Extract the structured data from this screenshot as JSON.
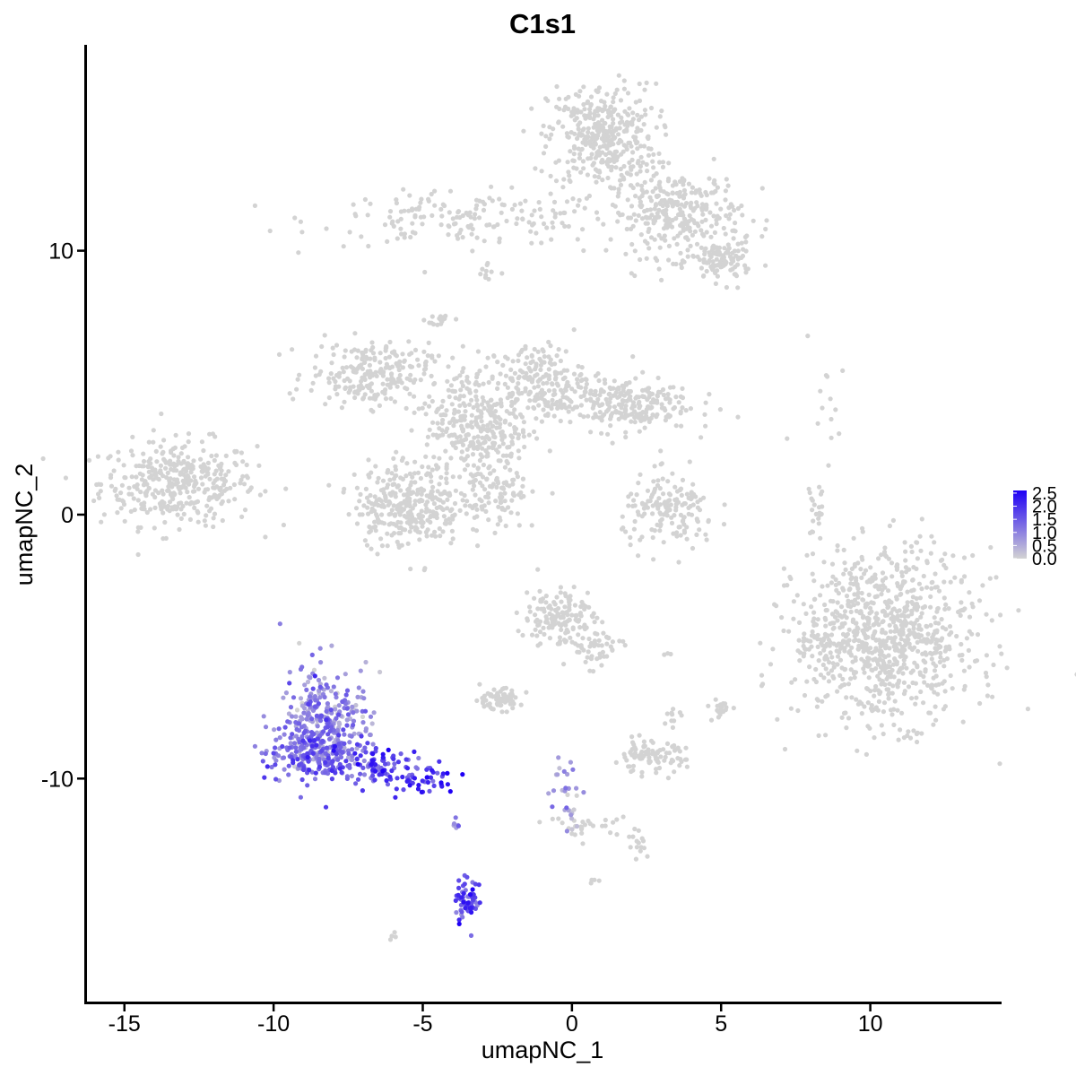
{
  "chart_data": {
    "type": "scatter",
    "title": "C1s1",
    "xlabel": "umapNC_1",
    "ylabel": "umapNC_2",
    "xlim": [
      -16.3,
      14.4
    ],
    "ylim": [
      -18.5,
      17.8
    ],
    "x_ticks": [
      -15,
      -10,
      -5,
      0,
      5,
      10
    ],
    "y_ticks": [
      -10,
      0,
      10
    ],
    "x_tick_labels": [
      "-15",
      "-10",
      "-5",
      "0",
      "5",
      "10"
    ],
    "y_tick_labels": [
      "-10",
      "0",
      "10"
    ],
    "grid": false,
    "legend_position": "right",
    "color_scale": {
      "low_color": "#d3d3d3",
      "high_color": "#1f00f5",
      "min": 0.0,
      "max": 2.6,
      "breaks": [
        0.0,
        0.5,
        1.0,
        1.5,
        2.0,
        2.5
      ],
      "labels": [
        "0.0",
        "0.5",
        "1.0",
        "1.5",
        "2.0",
        "2.5"
      ]
    },
    "clusters": [
      {
        "cx": -13.2,
        "cy": 1.2,
        "sx": 1.3,
        "sy": 0.8,
        "n": 380,
        "value": 0
      },
      {
        "cx": -3.5,
        "cy": 11.2,
        "sx": 2.5,
        "sy": 0.5,
        "n": 170,
        "value": 0
      },
      {
        "cx": 1.0,
        "cy": 14.3,
        "sx": 0.9,
        "sy": 1.0,
        "n": 380,
        "value": 0
      },
      {
        "cx": 3.5,
        "cy": 11.4,
        "sx": 1.1,
        "sy": 0.8,
        "n": 300,
        "value": 0
      },
      {
        "cx": 5.0,
        "cy": 9.6,
        "sx": 0.5,
        "sy": 0.4,
        "n": 110,
        "value": 0
      },
      {
        "cx": -2.8,
        "cy": 9.2,
        "sx": 0.2,
        "sy": 0.3,
        "n": 10,
        "value": 0
      },
      {
        "cx": -4.4,
        "cy": 7.4,
        "sx": 0.25,
        "sy": 0.15,
        "n": 16,
        "value": 0
      },
      {
        "cx": -6.8,
        "cy": 5.3,
        "sx": 1.0,
        "sy": 0.6,
        "n": 230,
        "value": 0
      },
      {
        "cx": -3.2,
        "cy": 3.4,
        "sx": 0.9,
        "sy": 1.2,
        "n": 330,
        "value": 0
      },
      {
        "cx": -1.2,
        "cy": 5.1,
        "sx": 0.8,
        "sy": 0.7,
        "n": 180,
        "value": 0
      },
      {
        "cx": 1.6,
        "cy": 4.2,
        "sx": 1.2,
        "sy": 0.5,
        "n": 260,
        "value": 0
      },
      {
        "cx": -5.5,
        "cy": 0.4,
        "sx": 0.9,
        "sy": 0.8,
        "n": 320,
        "value": 0
      },
      {
        "cx": -2.5,
        "cy": 0.7,
        "sx": 0.5,
        "sy": 0.8,
        "n": 90,
        "value": 0
      },
      {
        "cx": 3.3,
        "cy": 0.1,
        "sx": 0.8,
        "sy": 0.7,
        "n": 160,
        "value": 0
      },
      {
        "cx": 8.2,
        "cy": 0.2,
        "sx": 0.15,
        "sy": 0.6,
        "n": 22,
        "value": 0
      },
      {
        "cx": 10.5,
        "cy": -4.6,
        "sx": 1.5,
        "sy": 1.6,
        "n": 880,
        "value": 0
      },
      {
        "cx": 8.1,
        "cy": -4.7,
        "sx": 0.3,
        "sy": 0.4,
        "n": 30,
        "value": 0
      },
      {
        "cx": -0.4,
        "cy": -3.9,
        "sx": 0.6,
        "sy": 0.6,
        "n": 150,
        "value": 0
      },
      {
        "cx": 0.9,
        "cy": -5.1,
        "sx": 0.4,
        "sy": 0.4,
        "n": 40,
        "value": 0
      },
      {
        "cx": -2.5,
        "cy": -7.0,
        "sx": 0.4,
        "sy": 0.2,
        "n": 70,
        "value": 0
      },
      {
        "cx": 2.6,
        "cy": -9.2,
        "sx": 0.6,
        "sy": 0.3,
        "n": 90,
        "value": 0
      },
      {
        "cx": 5.0,
        "cy": -7.3,
        "sx": 0.2,
        "sy": 0.2,
        "n": 20,
        "value": 0
      },
      {
        "cx": 3.4,
        "cy": -7.7,
        "sx": 0.15,
        "sy": 0.15,
        "n": 10,
        "value": 0
      },
      {
        "cx": 0.6,
        "cy": -11.8,
        "sx": 0.7,
        "sy": 0.2,
        "n": 28,
        "value": 0
      },
      {
        "cx": 2.3,
        "cy": -12.5,
        "sx": 0.2,
        "sy": 0.3,
        "n": 14,
        "value": 0
      },
      {
        "cx": 0.7,
        "cy": -13.9,
        "sx": 0.1,
        "sy": 0.1,
        "n": 4,
        "value": 0
      },
      {
        "cx": -6.0,
        "cy": -16.0,
        "sx": 0.1,
        "sy": 0.1,
        "n": 4,
        "value": 0
      },
      {
        "cx": 8.4,
        "cy": 5.0,
        "sx": 0.5,
        "sy": 1.2,
        "n": 14,
        "value": 0
      },
      {
        "cx": 3.2,
        "cy": -5.2,
        "sx": 0.1,
        "sy": 0.1,
        "n": 3,
        "value": 0
      },
      {
        "cx": -8.3,
        "cy": -7.7,
        "sx": 0.75,
        "sy": 1.0,
        "n": 280,
        "value": 0.9
      },
      {
        "cx": -8.6,
        "cy": -9.1,
        "sx": 0.8,
        "sy": 0.5,
        "n": 220,
        "value": 1.3
      },
      {
        "cx": -6.3,
        "cy": -9.5,
        "sx": 0.6,
        "sy": 0.4,
        "n": 80,
        "value": 1.6
      },
      {
        "cx": -4.9,
        "cy": -10.1,
        "sx": 0.5,
        "sy": 0.3,
        "n": 40,
        "value": 2.0
      },
      {
        "cx": -3.5,
        "cy": -14.7,
        "sx": 0.2,
        "sy": 0.4,
        "n": 60,
        "value": 1.7
      },
      {
        "cx": -3.9,
        "cy": -11.8,
        "sx": 0.1,
        "sy": 0.2,
        "n": 6,
        "value": 1.2
      },
      {
        "cx": -0.2,
        "cy": -10.7,
        "sx": 0.25,
        "sy": 0.8,
        "n": 30,
        "value": 0.6
      }
    ]
  }
}
